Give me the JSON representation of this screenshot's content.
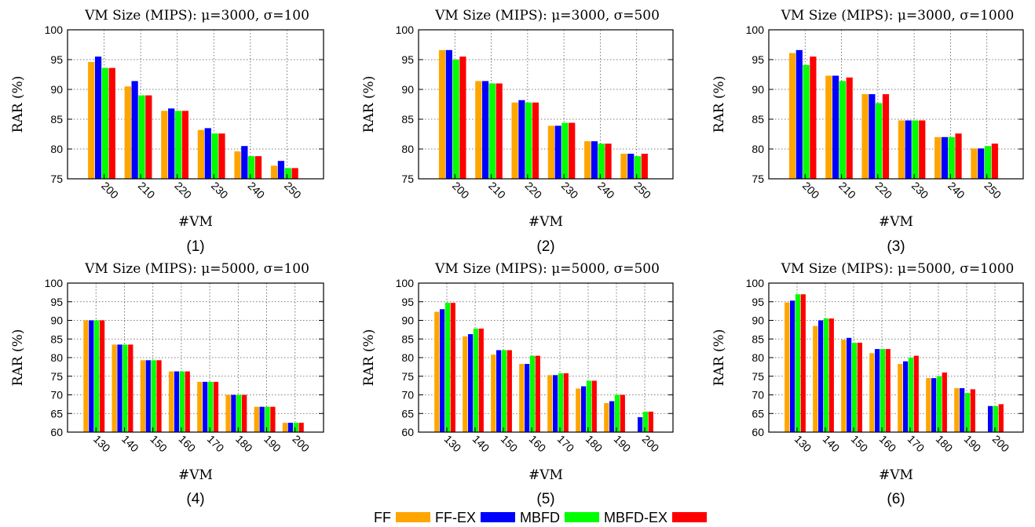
{
  "legend": [
    {
      "name": "FF",
      "color": "#ffa500"
    },
    {
      "name": "FF-EX",
      "color": "#0000ff"
    },
    {
      "name": "MBFD",
      "color": "#00ff00"
    },
    {
      "name": "MBFD-EX",
      "color": "#ff0000"
    }
  ],
  "chart_data": [
    {
      "type": "bar",
      "title": "VM Size (MIPS): μ=3000, σ=100",
      "panel_label": "(1)",
      "xlabel": "#VM",
      "ylabel": "RAR (%)",
      "ylim": [
        75,
        100
      ],
      "yticks": [
        75,
        80,
        85,
        90,
        95,
        100
      ],
      "grid": true,
      "categories": [
        "200",
        "210",
        "220",
        "230",
        "240",
        "250"
      ],
      "series": [
        {
          "name": "FF",
          "values": [
            94.6,
            90.5,
            86.4,
            83.2,
            79.6,
            77.2
          ]
        },
        {
          "name": "FF-EX",
          "values": [
            95.5,
            91.4,
            86.8,
            83.5,
            80.5,
            78.0
          ]
        },
        {
          "name": "MBFD",
          "values": [
            93.6,
            89.0,
            86.4,
            82.6,
            78.8,
            76.8
          ]
        },
        {
          "name": "MBFD-EX",
          "values": [
            93.6,
            89.0,
            86.4,
            82.6,
            78.8,
            76.8
          ]
        }
      ]
    },
    {
      "type": "bar",
      "title": "VM Size (MIPS): μ=3000, σ=500",
      "panel_label": "(2)",
      "xlabel": "#VM",
      "ylabel": "RAR (%)",
      "ylim": [
        75,
        100
      ],
      "yticks": [
        75,
        80,
        85,
        90,
        95,
        100
      ],
      "grid": true,
      "categories": [
        "200",
        "210",
        "220",
        "230",
        "240",
        "250"
      ],
      "series": [
        {
          "name": "FF",
          "values": [
            96.6,
            91.4,
            87.8,
            83.9,
            81.3,
            79.2
          ]
        },
        {
          "name": "FF-EX",
          "values": [
            96.6,
            91.4,
            88.2,
            83.9,
            81.3,
            79.2
          ]
        },
        {
          "name": "MBFD",
          "values": [
            95.0,
            91.0,
            87.8,
            84.4,
            80.9,
            78.8
          ]
        },
        {
          "name": "MBFD-EX",
          "values": [
            95.5,
            91.0,
            87.8,
            84.4,
            80.9,
            79.2
          ]
        }
      ]
    },
    {
      "type": "bar",
      "title": "VM Size (MIPS): μ=3000, σ=1000",
      "panel_label": "(3)",
      "xlabel": "#VM",
      "ylabel": "RAR (%)",
      "ylim": [
        75,
        100
      ],
      "yticks": [
        75,
        80,
        85,
        90,
        95,
        100
      ],
      "grid": true,
      "categories": [
        "200",
        "210",
        "220",
        "230",
        "240",
        "250"
      ],
      "series": [
        {
          "name": "FF",
          "values": [
            96.1,
            92.3,
            89.2,
            84.8,
            82.0,
            80.1
          ]
        },
        {
          "name": "FF-EX",
          "values": [
            96.6,
            92.3,
            89.2,
            84.8,
            82.0,
            80.1
          ]
        },
        {
          "name": "MBFD",
          "values": [
            94.1,
            91.4,
            87.7,
            84.8,
            82.0,
            80.5
          ]
        },
        {
          "name": "MBFD-EX",
          "values": [
            95.5,
            92.0,
            89.2,
            84.8,
            82.6,
            80.9
          ]
        }
      ]
    },
    {
      "type": "bar",
      "title": "VM Size (MIPS): μ=5000, σ=100",
      "panel_label": "(4)",
      "xlabel": "#VM",
      "ylabel": "RAR (%)",
      "ylim": [
        60,
        100
      ],
      "yticks": [
        60,
        65,
        70,
        75,
        80,
        85,
        90,
        95,
        100
      ],
      "grid": true,
      "categories": [
        "130",
        "140",
        "150",
        "160",
        "170",
        "180",
        "190",
        "200"
      ],
      "series": [
        {
          "name": "FF",
          "values": [
            90.0,
            83.5,
            79.3,
            76.3,
            73.5,
            70.0,
            66.8,
            62.5
          ]
        },
        {
          "name": "FF-EX",
          "values": [
            90.0,
            83.5,
            79.3,
            76.3,
            73.5,
            70.0,
            66.8,
            62.5
          ]
        },
        {
          "name": "MBFD",
          "values": [
            90.0,
            83.5,
            79.3,
            76.3,
            73.5,
            70.0,
            66.8,
            62.5
          ]
        },
        {
          "name": "MBFD-EX",
          "values": [
            90.0,
            83.5,
            79.3,
            76.3,
            73.5,
            70.0,
            66.8,
            62.5
          ]
        }
      ]
    },
    {
      "type": "bar",
      "title": "VM Size (MIPS): μ=5000, σ=500",
      "panel_label": "(5)",
      "xlabel": "#VM",
      "ylabel": "RAR (%)",
      "ylim": [
        60,
        100
      ],
      "yticks": [
        60,
        65,
        70,
        75,
        80,
        85,
        90,
        95,
        100
      ],
      "grid": true,
      "categories": [
        "130",
        "140",
        "150",
        "160",
        "170",
        "180",
        "190",
        "200"
      ],
      "series": [
        {
          "name": "FF",
          "values": [
            92.3,
            85.7,
            80.8,
            78.3,
            75.3,
            71.7,
            67.8,
            60.0
          ]
        },
        {
          "name": "FF-EX",
          "values": [
            93.0,
            86.3,
            82.0,
            78.3,
            75.3,
            72.3,
            68.3,
            64.0
          ]
        },
        {
          "name": "MBFD",
          "values": [
            94.7,
            87.8,
            82.0,
            80.5,
            75.8,
            73.8,
            70.0,
            65.5
          ]
        },
        {
          "name": "MBFD-EX",
          "values": [
            94.7,
            87.8,
            82.0,
            80.5,
            75.8,
            73.8,
            70.0,
            65.5
          ]
        }
      ]
    },
    {
      "type": "bar",
      "title": "VM Size (MIPS): μ=5000, σ=1000",
      "panel_label": "(6)",
      "xlabel": "#VM",
      "ylabel": "RAR (%)",
      "ylim": [
        60,
        100
      ],
      "yticks": [
        60,
        65,
        70,
        75,
        80,
        85,
        90,
        95,
        100
      ],
      "grid": true,
      "categories": [
        "130",
        "140",
        "150",
        "160",
        "170",
        "180",
        "190",
        "200"
      ],
      "series": [
        {
          "name": "FF",
          "values": [
            94.8,
            88.5,
            84.8,
            81.2,
            78.3,
            74.5,
            71.8,
            60.0
          ]
        },
        {
          "name": "FF-EX",
          "values": [
            95.3,
            90.0,
            85.3,
            82.3,
            79.0,
            74.5,
            71.8,
            67.0
          ]
        },
        {
          "name": "MBFD",
          "values": [
            97.0,
            90.5,
            84.0,
            82.3,
            80.0,
            75.0,
            70.5,
            67.0
          ]
        },
        {
          "name": "MBFD-EX",
          "values": [
            97.0,
            90.5,
            84.0,
            82.3,
            80.5,
            76.0,
            71.5,
            67.5
          ]
        }
      ]
    }
  ]
}
